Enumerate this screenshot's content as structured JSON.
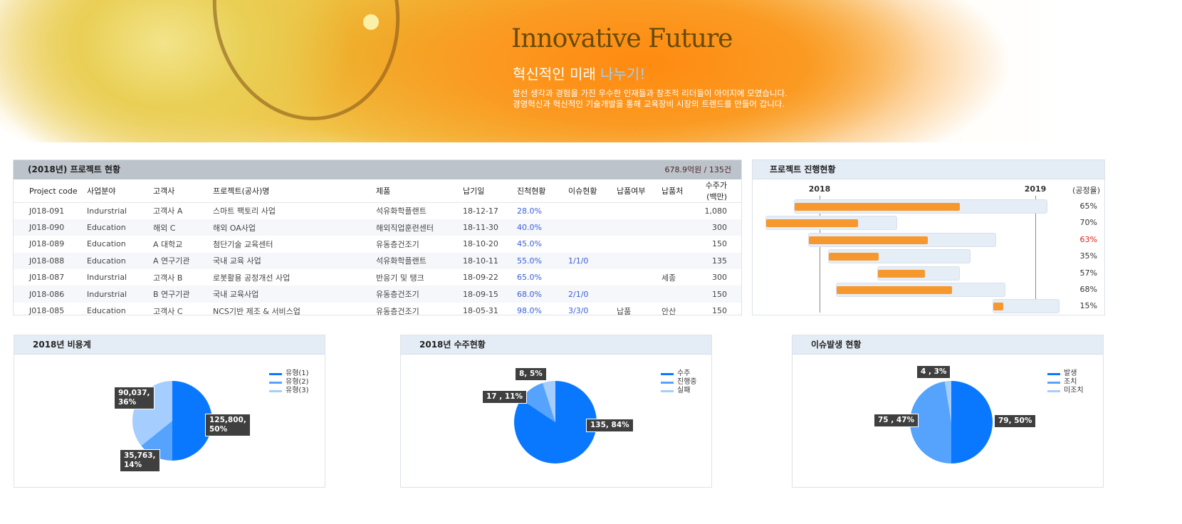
{
  "banner": {
    "title": "Innovative Future",
    "subtitle": "혁신적인 미래 ",
    "subtitle_highlight": "나누기!",
    "line1": "앞선 생각과 경험을 가진 우수한 인재들과 창조적 리더들이 아이지에 모였습니다.",
    "line2": "경영혁신과 혁신적인 기술개발을 통해 교육장비 시장의 트렌드를 만들어 갑니다."
  },
  "projects": {
    "title": "(2018년) 프로젝트 현황",
    "summary": "678.9억원 / 135건",
    "columns": [
      "Project code",
      "사업분야",
      "고객사",
      "프로젝트(공사)명",
      "제품",
      "납기일",
      "진척현황",
      "이슈현황",
      "납품여부",
      "납품처",
      "수주가(백만)"
    ],
    "rows": [
      [
        "J018-091",
        "Indurstrial",
        "고객사 A",
        "스마트 팩토리 사업",
        "석유화학플랜트",
        "18-12-17",
        "28.0%",
        "",
        "",
        "",
        "1,080"
      ],
      [
        "J018-090",
        "Education",
        "해외 C",
        "해외 OA사업",
        "해외직업훈련센터",
        "18-11-30",
        "40.0%",
        "",
        "",
        "",
        "300"
      ],
      [
        "J018-089",
        "Education",
        "A 대학교",
        "첨단기술 교육센터",
        "유동층건조기",
        "18-10-20",
        "45.0%",
        "",
        "",
        "",
        "150"
      ],
      [
        "J018-088",
        "Education",
        "A 연구기관",
        "국내 교육 사업",
        "석유화학플랜트",
        "18-10-11",
        "55.0%",
        "1/1/0",
        "",
        "",
        "135"
      ],
      [
        "J018-087",
        "Indurstrial",
        "고객사 B",
        "로봇활용 공정개선 사업",
        "반응기 및 탱크",
        "18-09-22",
        "65.0%",
        "",
        "",
        "세종",
        "300"
      ],
      [
        "J018-086",
        "Indurstrial",
        "B 연구기관",
        "국내 교육사업",
        "유동층건조기",
        "18-09-15",
        "68.0%",
        "2/1/0",
        "",
        "",
        "150"
      ],
      [
        "J018-085",
        "Education",
        "고객사 C",
        "NCS기반 제조 & 서비스업",
        "유동층건조기",
        "18-05-31",
        "98.0%",
        "3/3/0",
        "납품",
        "안산",
        "150"
      ]
    ]
  },
  "progress": {
    "title": "프로젝트 진행현황",
    "years": [
      "2018",
      "2019"
    ],
    "unit": "(공정율)",
    "bar_color": "#f7982e",
    "alert_color": "#e02020",
    "tasks": [
      {
        "start": "2017-11-19",
        "end": "2019-01-22",
        "progress": 65,
        "label": "65%"
      },
      {
        "start": "2017-10-01",
        "end": "2018-05-12",
        "progress": 70,
        "label": "70%"
      },
      {
        "start": "2017-12-13",
        "end": "2018-10-27",
        "progress": 63,
        "label": "63%",
        "alert": true
      },
      {
        "start": "2018-01-15",
        "end": "2018-09-13",
        "progress": 35,
        "label": "35%"
      },
      {
        "start": "2018-04-09",
        "end": "2018-08-26",
        "progress": 57,
        "label": "57%"
      },
      {
        "start": "2018-01-29",
        "end": "2018-11-11",
        "progress": 68,
        "label": "68%"
      },
      {
        "start": "2018-10-21",
        "end": "2019-02-11",
        "progress": 15,
        "label": "15%"
      }
    ]
  },
  "chart_data": [
    {
      "type": "pie",
      "title": "2018년 비용계",
      "legend": "top-right",
      "colors": [
        "#0a78fe",
        "#55a3fc",
        "#a5cdfd"
      ],
      "slices": [
        {
          "name": "유형(1)",
          "value": 125800,
          "label": "125,800,\n50%"
        },
        {
          "name": "유형(2)",
          "value": 35763,
          "label": "35,763,\n14%"
        },
        {
          "name": "유형(3)",
          "value": 90037,
          "label": "90,037,\n36%"
        }
      ]
    },
    {
      "type": "pie",
      "title": "2018년 수주현황",
      "legend": "top-right",
      "colors": [
        "#0a78fe",
        "#55a3fc",
        "#a5cdfd"
      ],
      "slices": [
        {
          "name": "수주",
          "value": 135,
          "label": "135, 84%"
        },
        {
          "name": "진행중",
          "value": 17,
          "label": "17 , 11%"
        },
        {
          "name": "실패",
          "value": 8,
          "label": "8, 5%"
        }
      ]
    },
    {
      "type": "pie",
      "title": "이슈발생 현황",
      "legend": "top-right",
      "colors": [
        "#0a78fe",
        "#55a3fc",
        "#a5cdfd"
      ],
      "slices": [
        {
          "name": "발생",
          "value": 79,
          "label": "79, 50%"
        },
        {
          "name": "조치",
          "value": 75,
          "label": "75 , 47%"
        },
        {
          "name": "미조치",
          "value": 4,
          "label": "4 , 3%"
        }
      ]
    }
  ]
}
